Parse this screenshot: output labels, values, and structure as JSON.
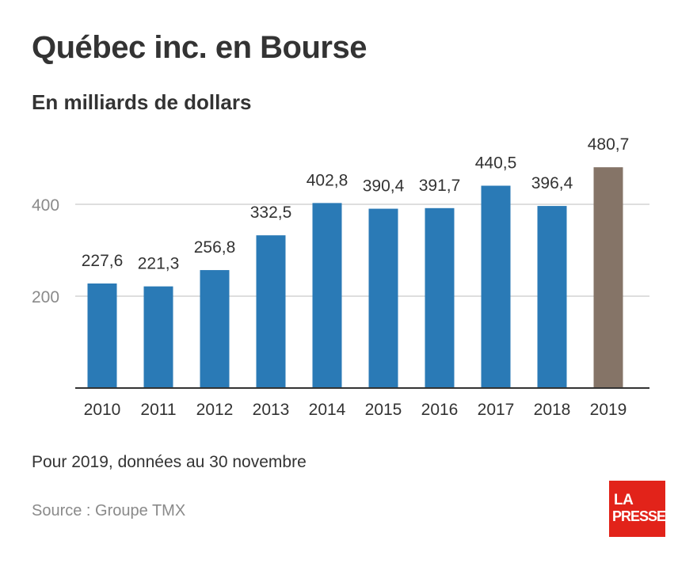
{
  "title": "Québec inc. en Bourse",
  "subtitle": "En milliards de dollars",
  "note": "Pour 2019, données au 30 novembre",
  "source": "Source : Groupe TMX",
  "logo": {
    "line1": "LA",
    "line2": "PRESSE"
  },
  "colors": {
    "bar": "#2a7ab6",
    "bar_highlight": "#857467",
    "grid": "#d4d4d4",
    "axis": "#333333",
    "logo_bg": "#e2231a"
  },
  "chart_data": {
    "type": "bar",
    "categories": [
      "2010",
      "2011",
      "2012",
      "2013",
      "2014",
      "2015",
      "2016",
      "2017",
      "2018",
      "2019"
    ],
    "values": [
      227.6,
      221.3,
      256.8,
      332.5,
      402.8,
      390.4,
      391.7,
      440.5,
      396.4,
      480.7
    ],
    "value_labels": [
      "227,6",
      "221,3",
      "256,8",
      "332,5",
      "402,8",
      "390,4",
      "391,7",
      "440,5",
      "396,4",
      "480,7"
    ],
    "highlight_index": 9,
    "ylim": [
      0,
      500
    ],
    "yticks": [
      200,
      400
    ],
    "ytick_labels": [
      "200",
      "400"
    ],
    "grid": true
  }
}
